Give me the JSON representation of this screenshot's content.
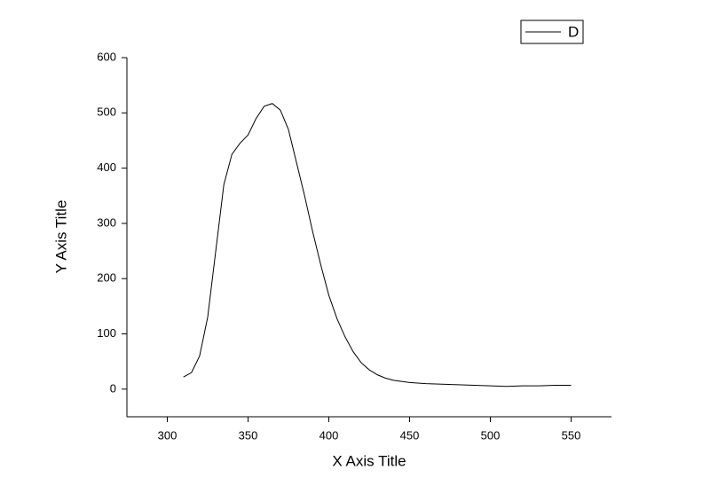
{
  "chart_data": {
    "type": "line",
    "x_label": "X Axis Title",
    "y_label": "Y Axis Title",
    "x": [
      310,
      315,
      320,
      325,
      330,
      335,
      340,
      345,
      350,
      355,
      360,
      365,
      370,
      375,
      380,
      385,
      390,
      395,
      400,
      405,
      410,
      415,
      420,
      425,
      430,
      435,
      440,
      450,
      460,
      470,
      480,
      490,
      500,
      510,
      520,
      530,
      540,
      550
    ],
    "series": [
      {
        "name": "D",
        "color": "#000000",
        "values": [
          22,
          30,
          60,
          130,
          250,
          370,
          425,
          445,
          460,
          490,
          512,
          517,
          505,
          470,
          410,
          350,
          285,
          225,
          170,
          128,
          95,
          68,
          48,
          35,
          26,
          20,
          16,
          12,
          10,
          9,
          8,
          7,
          6,
          5,
          6,
          6,
          7,
          7
        ]
      }
    ],
    "xlim": [
      275,
      575
    ],
    "xticks": [
      300,
      350,
      400,
      450,
      500,
      550
    ],
    "ylim": [
      -50,
      600
    ],
    "yticks": [
      0,
      100,
      200,
      300,
      400,
      500,
      600
    ],
    "legend": "top-right",
    "grid": false
  }
}
